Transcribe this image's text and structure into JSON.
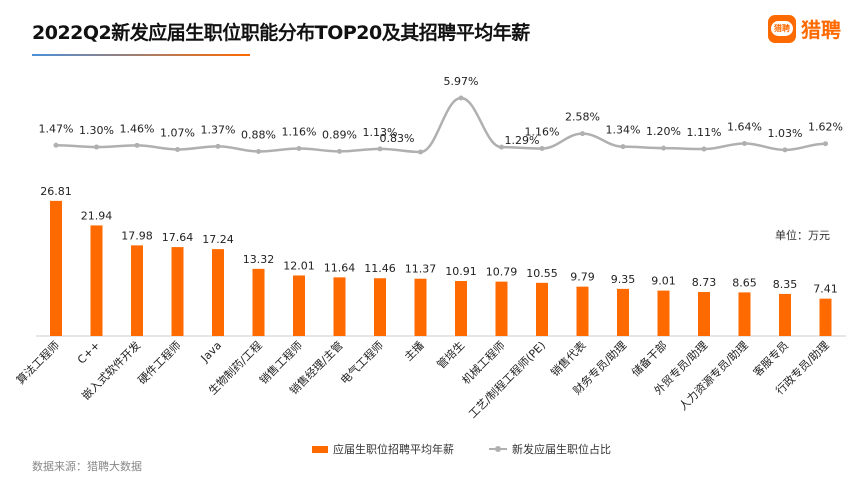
{
  "title": "2022Q2新发应届生职位职能分布TOP20及其招聘平均年薪",
  "logo_text": "猎聘",
  "unit_label": "单位：万元",
  "source": "数据来源：猎聘大数据",
  "colors": {
    "bar": "#ff6a00",
    "line": "#b0b0b0",
    "title_underline_start": "#4a90d9",
    "title_underline_end": "#ff6a00"
  },
  "chart_data": {
    "type": "bar+line",
    "categories": [
      "算法工程师",
      "C++",
      "嵌入式软件开发",
      "硬件工程师",
      "Java",
      "生物制药/工程",
      "销售工程师",
      "销售经理/主管",
      "电气工程师",
      "主播",
      "管培生",
      "机械工程师",
      "工艺/制程工程师(PE)",
      "销售代表",
      "财务专员/助理",
      "储备干部",
      "外贸专员/助理",
      "人力资源专员/助理",
      "客服专员",
      "行政专员/助理"
    ],
    "series": [
      {
        "name": "应届生职位招聘平均年薪",
        "type": "bar",
        "values": [
          26.81,
          21.94,
          17.98,
          17.64,
          17.24,
          13.32,
          12.01,
          11.64,
          11.46,
          11.37,
          10.91,
          10.79,
          10.55,
          9.79,
          9.35,
          9.01,
          8.73,
          8.65,
          8.35,
          7.41
        ]
      },
      {
        "name": "新发应届生职位占比",
        "type": "line",
        "values": [
          1.47,
          1.3,
          1.46,
          1.07,
          1.37,
          0.88,
          1.16,
          0.89,
          1.13,
          0.83,
          5.97,
          1.29,
          1.16,
          2.58,
          1.34,
          1.2,
          1.11,
          1.64,
          1.03,
          1.62
        ],
        "labels": [
          "1.47%",
          "1.30%",
          "1.46%",
          "1.07%",
          "1.37%",
          "0.88%",
          "1.16%",
          "0.89%",
          "1.13%",
          "0.83%",
          "5.97%",
          "1.29%",
          "1.16%",
          "2.58%",
          "1.34%",
          "1.20%",
          "1.11%",
          "1.64%",
          "1.03%",
          "1.62%"
        ]
      }
    ],
    "legend_position": "bottom",
    "grid": false
  }
}
